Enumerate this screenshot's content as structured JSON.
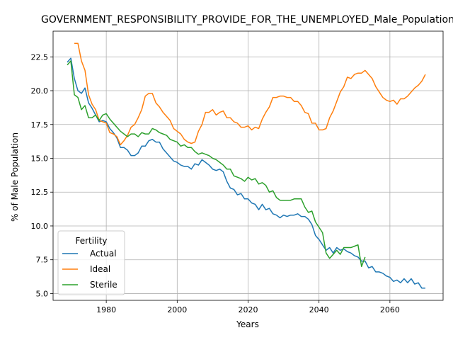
{
  "chart_data": {
    "type": "line",
    "title": "GOVERNMENT_RESPONSIBILITY_PROVIDE_FOR_THE_UNEMPLOYED_Male_Population",
    "xlabel": "Years",
    "ylabel": "% of Male Population",
    "xlim": [
      1965,
      2075
    ],
    "ylim": [
      4.5,
      24.4
    ],
    "xticks": [
      1980,
      2000,
      2020,
      2040,
      2060
    ],
    "yticks": [
      5.0,
      7.5,
      10.0,
      12.5,
      15.0,
      17.5,
      20.0,
      22.5
    ],
    "ytick_labels": [
      "5.0",
      "7.5",
      "10.0",
      "12.5",
      "15.0",
      "17.5",
      "20.0",
      "22.5"
    ],
    "grid": true,
    "legend": {
      "title": "Fertility",
      "position": "lower-left"
    },
    "series": [
      {
        "name": "Actual",
        "color": "#1f77b4",
        "points": [
          [
            1969,
            22.1
          ],
          [
            1970,
            22.4
          ],
          [
            1971,
            20.9
          ],
          [
            1972,
            20.0
          ],
          [
            1973,
            19.8
          ],
          [
            1974,
            20.2
          ],
          [
            1975,
            19.1
          ],
          [
            1976,
            18.7
          ],
          [
            1977,
            18.2
          ],
          [
            1978,
            17.7
          ],
          [
            1979,
            17.8
          ],
          [
            1980,
            17.7
          ],
          [
            1981,
            17.2
          ],
          [
            1982,
            16.9
          ],
          [
            1983,
            16.5
          ],
          [
            1984,
            15.8
          ],
          [
            1985,
            15.8
          ],
          [
            1986,
            15.6
          ],
          [
            1987,
            15.2
          ],
          [
            1988,
            15.2
          ],
          [
            1989,
            15.4
          ],
          [
            1990,
            15.9
          ],
          [
            1991,
            15.9
          ],
          [
            1992,
            16.3
          ],
          [
            1993,
            16.4
          ],
          [
            1994,
            16.2
          ],
          [
            1995,
            16.2
          ],
          [
            1996,
            15.7
          ],
          [
            1997,
            15.4
          ],
          [
            1998,
            15.1
          ],
          [
            1999,
            14.8
          ],
          [
            2000,
            14.7
          ],
          [
            2001,
            14.5
          ],
          [
            2002,
            14.4
          ],
          [
            2003,
            14.4
          ],
          [
            2004,
            14.2
          ],
          [
            2005,
            14.6
          ],
          [
            2006,
            14.5
          ],
          [
            2007,
            14.9
          ],
          [
            2008,
            14.7
          ],
          [
            2009,
            14.5
          ],
          [
            2010,
            14.2
          ],
          [
            2011,
            14.1
          ],
          [
            2012,
            14.2
          ],
          [
            2013,
            14.0
          ],
          [
            2014,
            13.3
          ],
          [
            2015,
            12.8
          ],
          [
            2016,
            12.7
          ],
          [
            2017,
            12.3
          ],
          [
            2018,
            12.4
          ],
          [
            2019,
            12.0
          ],
          [
            2020,
            12.0
          ],
          [
            2021,
            11.7
          ],
          [
            2022,
            11.6
          ],
          [
            2023,
            11.2
          ],
          [
            2024,
            11.6
          ],
          [
            2025,
            11.2
          ],
          [
            2026,
            11.3
          ],
          [
            2027,
            10.9
          ],
          [
            2028,
            10.8
          ],
          [
            2029,
            10.6
          ],
          [
            2030,
            10.8
          ],
          [
            2031,
            10.7
          ],
          [
            2032,
            10.8
          ],
          [
            2033,
            10.8
          ],
          [
            2034,
            10.9
          ],
          [
            2035,
            10.7
          ],
          [
            2036,
            10.7
          ],
          [
            2037,
            10.5
          ],
          [
            2038,
            10.1
          ],
          [
            2039,
            9.3
          ],
          [
            2040,
            9.0
          ],
          [
            2041,
            8.6
          ],
          [
            2042,
            8.2
          ],
          [
            2043,
            8.4
          ],
          [
            2044,
            8.0
          ],
          [
            2045,
            8.4
          ],
          [
            2046,
            8.2
          ],
          [
            2047,
            8.3
          ],
          [
            2048,
            8.1
          ],
          [
            2049,
            8.0
          ],
          [
            2050,
            7.8
          ],
          [
            2051,
            7.7
          ],
          [
            2052,
            7.4
          ],
          [
            2053,
            7.4
          ],
          [
            2054,
            6.9
          ],
          [
            2055,
            7.0
          ],
          [
            2056,
            6.6
          ],
          [
            2057,
            6.6
          ],
          [
            2058,
            6.5
          ],
          [
            2059,
            6.3
          ],
          [
            2060,
            6.2
          ],
          [
            2061,
            5.9
          ],
          [
            2062,
            6.0
          ],
          [
            2063,
            5.8
          ],
          [
            2064,
            6.1
          ],
          [
            2065,
            5.8
          ],
          [
            2066,
            6.1
          ],
          [
            2067,
            5.7
          ],
          [
            2068,
            5.8
          ],
          [
            2069,
            5.4
          ],
          [
            2070,
            5.4
          ]
        ]
      },
      {
        "name": "Ideal",
        "color": "#ff7f0e",
        "points": [
          [
            1971,
            23.5
          ],
          [
            1972,
            23.5
          ],
          [
            1973,
            22.2
          ],
          [
            1974,
            21.5
          ],
          [
            1975,
            19.7
          ],
          [
            1976,
            19.0
          ],
          [
            1977,
            18.6
          ],
          [
            1978,
            17.8
          ],
          [
            1979,
            17.7
          ],
          [
            1980,
            17.6
          ],
          [
            1981,
            16.9
          ],
          [
            1982,
            16.8
          ],
          [
            1983,
            16.6
          ],
          [
            1984,
            16.0
          ],
          [
            1985,
            16.3
          ],
          [
            1986,
            16.7
          ],
          [
            1987,
            17.3
          ],
          [
            1988,
            17.5
          ],
          [
            1989,
            18.0
          ],
          [
            1990,
            18.6
          ],
          [
            1991,
            19.6
          ],
          [
            1992,
            19.8
          ],
          [
            1993,
            19.8
          ],
          [
            1994,
            19.1
          ],
          [
            1995,
            18.8
          ],
          [
            1996,
            18.4
          ],
          [
            1997,
            18.1
          ],
          [
            1998,
            17.8
          ],
          [
            1999,
            17.2
          ],
          [
            2000,
            17.0
          ],
          [
            2001,
            16.8
          ],
          [
            2002,
            16.4
          ],
          [
            2003,
            16.2
          ],
          [
            2004,
            16.1
          ],
          [
            2005,
            16.2
          ],
          [
            2006,
            17.0
          ],
          [
            2007,
            17.5
          ],
          [
            2008,
            18.4
          ],
          [
            2009,
            18.4
          ],
          [
            2010,
            18.6
          ],
          [
            2011,
            18.2
          ],
          [
            2012,
            18.4
          ],
          [
            2013,
            18.5
          ],
          [
            2014,
            18.0
          ],
          [
            2015,
            18.0
          ],
          [
            2016,
            17.7
          ],
          [
            2017,
            17.6
          ],
          [
            2018,
            17.3
          ],
          [
            2019,
            17.3
          ],
          [
            2020,
            17.4
          ],
          [
            2021,
            17.1
          ],
          [
            2022,
            17.3
          ],
          [
            2023,
            17.2
          ],
          [
            2024,
            17.9
          ],
          [
            2025,
            18.4
          ],
          [
            2026,
            18.8
          ],
          [
            2027,
            19.5
          ],
          [
            2028,
            19.5
          ],
          [
            2029,
            19.6
          ],
          [
            2030,
            19.6
          ],
          [
            2031,
            19.5
          ],
          [
            2032,
            19.5
          ],
          [
            2033,
            19.2
          ],
          [
            2034,
            19.2
          ],
          [
            2035,
            18.9
          ],
          [
            2036,
            18.4
          ],
          [
            2037,
            18.3
          ],
          [
            2038,
            17.6
          ],
          [
            2039,
            17.6
          ],
          [
            2040,
            17.1
          ],
          [
            2041,
            17.1
          ],
          [
            2042,
            17.2
          ],
          [
            2043,
            18.0
          ],
          [
            2044,
            18.5
          ],
          [
            2045,
            19.2
          ],
          [
            2046,
            19.9
          ],
          [
            2047,
            20.3
          ],
          [
            2048,
            21.0
          ],
          [
            2049,
            20.9
          ],
          [
            2050,
            21.2
          ],
          [
            2051,
            21.3
          ],
          [
            2052,
            21.3
          ],
          [
            2053,
            21.5
          ],
          [
            2054,
            21.2
          ],
          [
            2055,
            20.9
          ],
          [
            2056,
            20.3
          ],
          [
            2057,
            19.9
          ],
          [
            2058,
            19.5
          ],
          [
            2059,
            19.3
          ],
          [
            2060,
            19.2
          ],
          [
            2061,
            19.3
          ],
          [
            2062,
            19.0
          ],
          [
            2063,
            19.4
          ],
          [
            2064,
            19.4
          ],
          [
            2065,
            19.6
          ],
          [
            2066,
            19.9
          ],
          [
            2067,
            20.2
          ],
          [
            2068,
            20.4
          ],
          [
            2069,
            20.7
          ],
          [
            2070,
            21.2
          ]
        ]
      },
      {
        "name": "Sterile",
        "color": "#2ca02c",
        "points": [
          [
            1969,
            21.9
          ],
          [
            1970,
            22.2
          ],
          [
            1971,
            19.7
          ],
          [
            1972,
            19.5
          ],
          [
            1973,
            18.6
          ],
          [
            1974,
            18.9
          ],
          [
            1975,
            18.0
          ],
          [
            1976,
            18.0
          ],
          [
            1977,
            18.2
          ],
          [
            1978,
            17.8
          ],
          [
            1979,
            18.2
          ],
          [
            1980,
            18.3
          ],
          [
            1981,
            17.9
          ],
          [
            1982,
            17.6
          ],
          [
            1983,
            17.3
          ],
          [
            1984,
            17.0
          ],
          [
            1985,
            16.8
          ],
          [
            1986,
            16.6
          ],
          [
            1987,
            16.8
          ],
          [
            1988,
            16.8
          ],
          [
            1989,
            16.6
          ],
          [
            1990,
            16.9
          ],
          [
            1991,
            16.8
          ],
          [
            1992,
            16.8
          ],
          [
            1993,
            17.2
          ],
          [
            1994,
            17.1
          ],
          [
            1995,
            16.9
          ],
          [
            1996,
            16.8
          ],
          [
            1997,
            16.7
          ],
          [
            1998,
            16.4
          ],
          [
            1999,
            16.3
          ],
          [
            2000,
            16.2
          ],
          [
            2001,
            15.9
          ],
          [
            2002,
            16.0
          ],
          [
            2003,
            15.8
          ],
          [
            2004,
            15.8
          ],
          [
            2005,
            15.5
          ],
          [
            2006,
            15.3
          ],
          [
            2007,
            15.4
          ],
          [
            2008,
            15.3
          ],
          [
            2009,
            15.2
          ],
          [
            2010,
            15.0
          ],
          [
            2011,
            14.9
          ],
          [
            2012,
            14.7
          ],
          [
            2013,
            14.5
          ],
          [
            2014,
            14.2
          ],
          [
            2015,
            14.2
          ],
          [
            2016,
            13.7
          ],
          [
            2017,
            13.6
          ],
          [
            2018,
            13.5
          ],
          [
            2019,
            13.3
          ],
          [
            2020,
            13.6
          ],
          [
            2021,
            13.4
          ],
          [
            2022,
            13.5
          ],
          [
            2023,
            13.1
          ],
          [
            2024,
            13.2
          ],
          [
            2025,
            13.0
          ],
          [
            2026,
            12.5
          ],
          [
            2027,
            12.6
          ],
          [
            2028,
            12.1
          ],
          [
            2029,
            11.9
          ],
          [
            2030,
            11.9
          ],
          [
            2031,
            11.9
          ],
          [
            2032,
            11.9
          ],
          [
            2033,
            12.0
          ],
          [
            2034,
            12.0
          ],
          [
            2035,
            12.0
          ],
          [
            2036,
            11.4
          ],
          [
            2037,
            11.0
          ],
          [
            2038,
            11.1
          ],
          [
            2039,
            10.3
          ],
          [
            2040,
            9.9
          ],
          [
            2041,
            9.5
          ],
          [
            2042,
            8.0
          ],
          [
            2043,
            7.6
          ],
          [
            2044,
            7.9
          ],
          [
            2045,
            8.2
          ],
          [
            2046,
            7.9
          ],
          [
            2047,
            8.4
          ],
          [
            2048,
            8.4
          ],
          [
            2049,
            8.4
          ],
          [
            2050,
            8.5
          ],
          [
            2051,
            8.6
          ],
          [
            2052,
            7.0
          ],
          [
            2053,
            7.7
          ]
        ]
      }
    ]
  }
}
